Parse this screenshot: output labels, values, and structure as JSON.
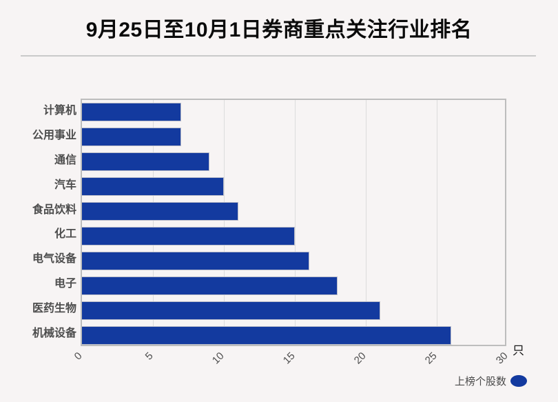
{
  "header": {
    "title": "9月25日至10月1日券商重点关注行业排名"
  },
  "chart_data": {
    "type": "bar",
    "orientation": "horizontal",
    "title": "9月25日至10月1日券商重点关注行业排名",
    "categories": [
      "计算机",
      "公用事业",
      "通信",
      "汽车",
      "食品饮料",
      "化工",
      "电气设备",
      "电子",
      "医药生物",
      "机械设备"
    ],
    "values": [
      7,
      7,
      9,
      10,
      11,
      15,
      16,
      18,
      21,
      26
    ],
    "series_name": "上榜个股数",
    "xlim": [
      0,
      30
    ],
    "x_ticks": [
      0,
      5,
      10,
      15,
      20,
      25,
      30
    ],
    "x_unit": "只",
    "grid": "vertical",
    "legend_position": "bottom-right",
    "colors": {
      "bar": "#133a9f",
      "background": "#f7f4f4",
      "grid": "#dcdcdc",
      "label_text": "#4d4d4d",
      "title_text": "#0a0a0a"
    }
  },
  "axis": {
    "unit_label": "只"
  },
  "legend": {
    "label": "上榜个股数"
  }
}
